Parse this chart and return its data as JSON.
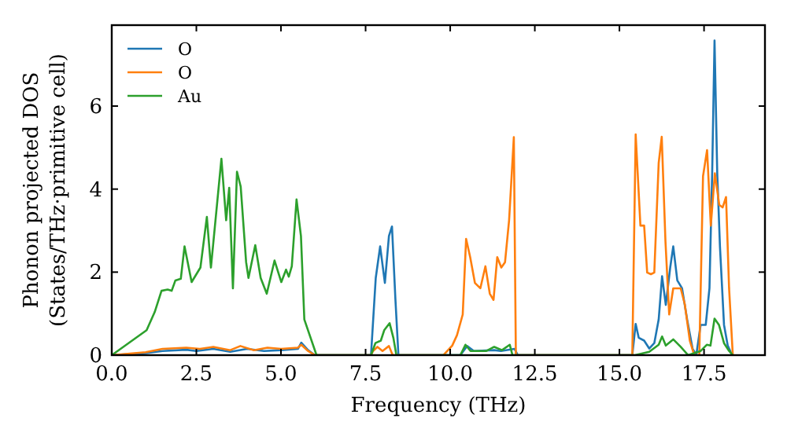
{
  "chart_data": {
    "type": "line",
    "xlabel": "Frequency (THz)",
    "ylabel": "Phonon projected DOS\n(States/THz·primitive cell)",
    "xlim": [
      0,
      19.3
    ],
    "ylim": [
      0,
      7.95
    ],
    "xticks": [
      {
        "value": 0,
        "label": "0.0"
      },
      {
        "value": 2.5,
        "label": "2.5"
      },
      {
        "value": 5,
        "label": "5.0"
      },
      {
        "value": 7.5,
        "label": "7.5"
      },
      {
        "value": 10,
        "label": "10.0"
      },
      {
        "value": 12.5,
        "label": "12.5"
      },
      {
        "value": 15,
        "label": "15.0"
      },
      {
        "value": 17.5,
        "label": "17.5"
      }
    ],
    "yticks": [
      0,
      2,
      4,
      6
    ],
    "grid": false,
    "legend": "top left",
    "marker": "none",
    "line_style": "solid",
    "series": [
      {
        "name": "O",
        "color": "#1f77b4",
        "x": [
          0,
          1,
          1.5,
          2.2,
          2.5,
          3,
          3.5,
          4,
          4.5,
          5,
          5.5,
          5.6,
          5.8,
          6,
          7.66,
          7.8,
          7.93,
          8.07,
          8.19,
          8.28,
          8.38,
          8.47,
          10.3,
          10.5,
          10.7,
          11.3,
          11.5,
          11.9,
          12,
          15.38,
          15.48,
          15.57,
          15.73,
          15.88,
          16.03,
          16.16,
          16.26,
          16.37,
          16.5,
          16.59,
          16.71,
          16.85,
          17,
          17.16,
          17.27,
          17.4,
          17.55,
          17.66,
          17.74,
          17.81,
          17.89,
          17.97,
          18.09,
          18.2,
          18.33
        ],
        "values": [
          0,
          0.05,
          0.1,
          0.13,
          0.1,
          0.15,
          0.08,
          0.15,
          0.1,
          0.12,
          0.15,
          0.3,
          0.12,
          0,
          0,
          1.86,
          2.62,
          1.74,
          2.87,
          3.1,
          1.36,
          0,
          0,
          0.22,
          0.1,
          0.12,
          0.1,
          0.15,
          0,
          0,
          0.75,
          0.42,
          0.35,
          0.16,
          0.29,
          0.86,
          1.9,
          1.21,
          2.11,
          2.62,
          1.8,
          1.61,
          0.86,
          0.16,
          0,
          0.73,
          0.73,
          1.61,
          4.38,
          7.58,
          4.38,
          2.62,
          0.73,
          0.23,
          0
        ]
      },
      {
        "name": "O",
        "color": "#ff7f0e",
        "x": [
          0,
          1,
          1.5,
          2.2,
          2.6,
          3,
          3.5,
          3.8,
          4.2,
          4.6,
          5,
          5.5,
          5.6,
          5.8,
          6,
          7.66,
          7.72,
          7.85,
          8,
          8.19,
          8.3,
          9.8,
          10.06,
          10.2,
          10.37,
          10.47,
          10.59,
          10.73,
          10.89,
          11.04,
          11.17,
          11.28,
          11.39,
          11.51,
          11.62,
          11.74,
          11.88,
          11.94,
          15.38,
          15.48,
          15.62,
          15.73,
          15.82,
          15.93,
          16.03,
          16.16,
          16.25,
          16.36,
          16.47,
          16.59,
          16.81,
          16.93,
          17.08,
          17.21,
          17.36,
          17.47,
          17.59,
          17.7,
          17.82,
          17.95,
          18.05,
          18.15,
          18.24,
          18.35
        ],
        "values": [
          0,
          0.07,
          0.15,
          0.18,
          0.15,
          0.2,
          0.12,
          0.22,
          0.12,
          0.18,
          0.15,
          0.18,
          0.25,
          0.1,
          0,
          0,
          0.1,
          0.2,
          0.1,
          0.22,
          0,
          0,
          0.23,
          0.48,
          0.98,
          2.8,
          2.36,
          1.74,
          1.61,
          2.14,
          1.48,
          1.33,
          2.36,
          2.11,
          2.24,
          3.25,
          5.25,
          0,
          0,
          5.32,
          3.12,
          3.12,
          1.99,
          1.95,
          1.99,
          4.63,
          5.26,
          2.74,
          0.98,
          1.61,
          1.61,
          1.23,
          0.35,
          0,
          0,
          4.31,
          4.94,
          3.12,
          4.38,
          3.62,
          3.56,
          3.81,
          1.61,
          0
        ]
      },
      {
        "name": "Au",
        "color": "#2ca02c",
        "x": [
          0,
          1.03,
          1.27,
          1.47,
          1.65,
          1.77,
          1.88,
          2.04,
          2.15,
          2.36,
          2.62,
          2.81,
          2.93,
          3.24,
          3.38,
          3.47,
          3.58,
          3.7,
          3.81,
          3.97,
          4.04,
          4.24,
          4.4,
          4.58,
          4.81,
          5.01,
          5.15,
          5.23,
          5.32,
          5.46,
          5.59,
          5.69,
          6.05,
          7.66,
          7.79,
          7.95,
          8.05,
          8.21,
          8.32,
          8.41,
          10.3,
          10.45,
          10.6,
          11.07,
          11.3,
          11.53,
          11.76,
          11.84,
          15.46,
          15.88,
          16.16,
          16.26,
          16.37,
          16.59,
          16.81,
          17.03,
          17.4,
          17.58,
          17.69,
          17.81,
          17.94,
          18.09,
          18.24,
          18.35
        ],
        "values": [
          0,
          0.6,
          1.04,
          1.55,
          1.58,
          1.55,
          1.8,
          1.84,
          2.62,
          1.76,
          2.11,
          3.33,
          2.11,
          4.73,
          3.25,
          4.03,
          1.61,
          4.42,
          4.06,
          2.24,
          1.86,
          2.65,
          1.86,
          1.48,
          2.28,
          1.76,
          2.06,
          1.89,
          2.14,
          3.75,
          2.87,
          0.86,
          0,
          0,
          0.29,
          0.35,
          0.6,
          0.77,
          0.42,
          0,
          0,
          0.25,
          0.1,
          0.1,
          0.2,
          0.12,
          0.25,
          0,
          0,
          0.08,
          0.25,
          0.45,
          0.23,
          0.38,
          0.2,
          0,
          0.1,
          0.25,
          0.23,
          0.88,
          0.73,
          0.29,
          0.1,
          0
        ]
      }
    ]
  }
}
